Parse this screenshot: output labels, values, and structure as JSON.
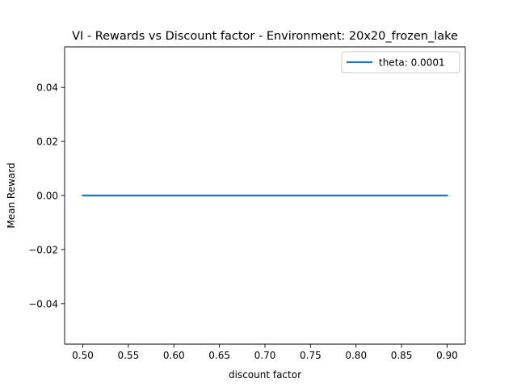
{
  "chart_data": {
    "type": "line",
    "title": "VI - Rewards vs Discount factor - Environment: 20x20_frozen_lake",
    "xlabel": "discount factor",
    "ylabel": "Mean Reward",
    "xlim": [
      0.48,
      0.92
    ],
    "ylim": [
      -0.055,
      0.055
    ],
    "xticks": [
      0.5,
      0.55,
      0.6,
      0.65,
      0.7,
      0.75,
      0.8,
      0.85,
      0.9
    ],
    "xtick_labels": [
      "0.50",
      "0.55",
      "0.60",
      "0.65",
      "0.70",
      "0.75",
      "0.80",
      "0.85",
      "0.90"
    ],
    "yticks": [
      -0.04,
      -0.02,
      0.0,
      0.02,
      0.04
    ],
    "ytick_labels": [
      "−0.04",
      "−0.02",
      "0.00",
      "0.02",
      "0.04"
    ],
    "grid": false,
    "legend_position": "top-right",
    "series": [
      {
        "name": "theta: 0.0001",
        "color": "#1f77b4",
        "x": [
          0.5,
          0.55,
          0.6,
          0.65,
          0.7,
          0.75,
          0.8,
          0.85,
          0.9
        ],
        "y": [
          0.0,
          0.0,
          0.0,
          0.0,
          0.0,
          0.0,
          0.0,
          0.0,
          0.0
        ]
      }
    ]
  }
}
